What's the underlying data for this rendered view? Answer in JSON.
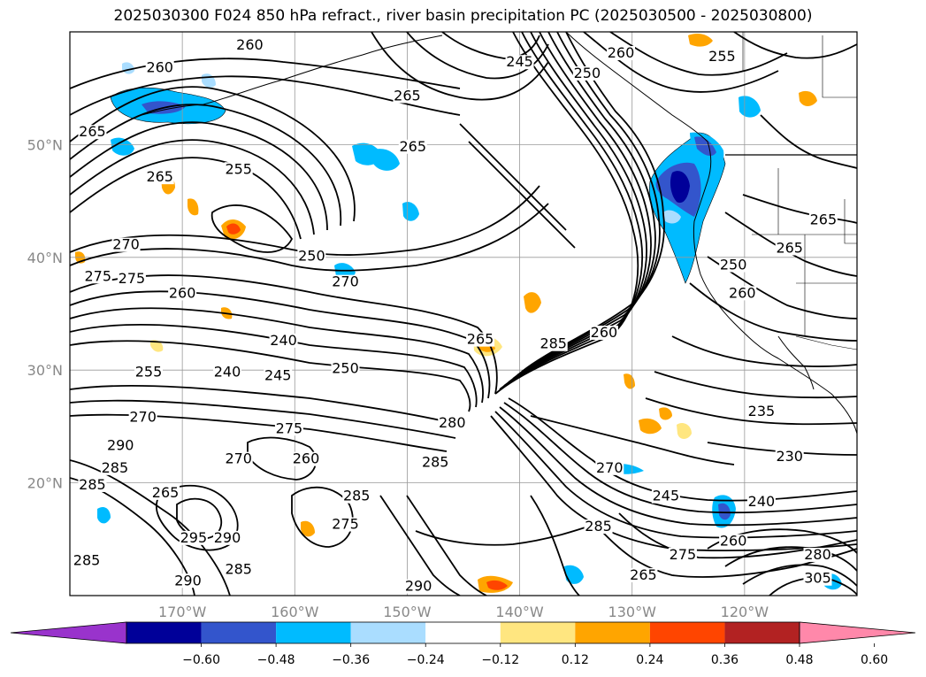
{
  "title": "2025030300 F024 850 hPa refract., river basin precipitation PC (2025030500 - 2025030800)",
  "map": {
    "lon_range": [
      -180,
      -110
    ],
    "lat_range": [
      10,
      60
    ],
    "lat_ticks": [
      {
        "value": 20,
        "label": "20°N"
      },
      {
        "value": 30,
        "label": "30°N"
      },
      {
        "value": 40,
        "label": "40°N"
      },
      {
        "value": 50,
        "label": "50°N"
      }
    ],
    "lon_ticks": [
      {
        "value": -170,
        "label": "170°W"
      },
      {
        "value": -160,
        "label": "160°W"
      },
      {
        "value": -150,
        "label": "150°W"
      },
      {
        "value": -140,
        "label": "140°W"
      },
      {
        "value": -130,
        "label": "130°W"
      },
      {
        "value": -120,
        "label": "120°W"
      }
    ],
    "contour_labels": [
      {
        "text": "260",
        "lon": -172,
        "lat": 56.5
      },
      {
        "text": "260",
        "lon": -164,
        "lat": 58.5
      },
      {
        "text": "245",
        "lon": -140,
        "lat": 57
      },
      {
        "text": "250",
        "lon": -134,
        "lat": 56
      },
      {
        "text": "260",
        "lon": -131,
        "lat": 57.8
      },
      {
        "text": "255",
        "lon": -122,
        "lat": 57.5
      },
      {
        "text": "265",
        "lon": -150,
        "lat": 54
      },
      {
        "text": "265",
        "lon": -149.5,
        "lat": 49.5
      },
      {
        "text": "265",
        "lon": -178,
        "lat": 50.8
      },
      {
        "text": "265",
        "lon": -172,
        "lat": 46.8
      },
      {
        "text": "255",
        "lon": -165,
        "lat": 47.5
      },
      {
        "text": "270",
        "lon": -175,
        "lat": 40.8
      },
      {
        "text": "275",
        "lon": -177.5,
        "lat": 38
      },
      {
        "text": "275",
        "lon": -174.5,
        "lat": 37.8
      },
      {
        "text": "250",
        "lon": -158.5,
        "lat": 39.8
      },
      {
        "text": "270",
        "lon": -155.5,
        "lat": 37.5
      },
      {
        "text": "260",
        "lon": -170,
        "lat": 36.5
      },
      {
        "text": "240",
        "lon": -161,
        "lat": 32.3
      },
      {
        "text": "240",
        "lon": -166,
        "lat": 29.5
      },
      {
        "text": "245",
        "lon": -161.5,
        "lat": 29.2
      },
      {
        "text": "250",
        "lon": -155.5,
        "lat": 29.8
      },
      {
        "text": "255",
        "lon": -173,
        "lat": 29.5
      },
      {
        "text": "265",
        "lon": -143.5,
        "lat": 32.4
      },
      {
        "text": "285",
        "lon": -137,
        "lat": 32
      },
      {
        "text": "260",
        "lon": -132.5,
        "lat": 33
      },
      {
        "text": "250",
        "lon": -121,
        "lat": 39
      },
      {
        "text": "260",
        "lon": -120.2,
        "lat": 36.5
      },
      {
        "text": "265",
        "lon": -116,
        "lat": 40.5
      },
      {
        "text": "265",
        "lon": -113,
        "lat": 43
      },
      {
        "text": "235",
        "lon": -118.5,
        "lat": 26
      },
      {
        "text": "230",
        "lon": -116,
        "lat": 22
      },
      {
        "text": "240",
        "lon": -118.5,
        "lat": 18
      },
      {
        "text": "245",
        "lon": -127,
        "lat": 18.5
      },
      {
        "text": "270",
        "lon": -173.5,
        "lat": 25.5
      },
      {
        "text": "280",
        "lon": -146,
        "lat": 25
      },
      {
        "text": "285",
        "lon": -147.5,
        "lat": 21.5
      },
      {
        "text": "290",
        "lon": -175.5,
        "lat": 23
      },
      {
        "text": "285",
        "lon": -176,
        "lat": 21
      },
      {
        "text": "285",
        "lon": -178,
        "lat": 19.5
      },
      {
        "text": "265",
        "lon": -171.5,
        "lat": 18.8
      },
      {
        "text": "275",
        "lon": -160.5,
        "lat": 24.5
      },
      {
        "text": "260",
        "lon": -159,
        "lat": 21.8
      },
      {
        "text": "270",
        "lon": -165,
        "lat": 21.8
      },
      {
        "text": "285",
        "lon": -154.5,
        "lat": 18.5
      },
      {
        "text": "275",
        "lon": -155.5,
        "lat": 16
      },
      {
        "text": "295",
        "lon": -169,
        "lat": 14.8
      },
      {
        "text": "290",
        "lon": -166,
        "lat": 14.8
      },
      {
        "text": "285",
        "lon": -178.5,
        "lat": 12.8
      },
      {
        "text": "285",
        "lon": -165,
        "lat": 12
      },
      {
        "text": "290",
        "lon": -169.5,
        "lat": 11
      },
      {
        "text": "290",
        "lon": -149,
        "lat": 10.5
      },
      {
        "text": "285",
        "lon": -133,
        "lat": 15.8
      },
      {
        "text": "275",
        "lon": -125.5,
        "lat": 13.3
      },
      {
        "text": "265",
        "lon": -129,
        "lat": 11.5
      },
      {
        "text": "260",
        "lon": -121,
        "lat": 14.5
      },
      {
        "text": "280",
        "lon": -113.5,
        "lat": 13.3
      },
      {
        "text": "305",
        "lon": -113.5,
        "lat": 11.2
      },
      {
        "text": "270",
        "lon": -132,
        "lat": 21
      }
    ]
  },
  "colorbar": {
    "ticks": [
      "−0.60",
      "−0.48",
      "−0.36",
      "−0.24",
      "−0.12",
      "0.12",
      "0.24",
      "0.36",
      "0.48",
      "0.60"
    ],
    "colors": [
      "#9933cc",
      "#000099",
      "#3355cc",
      "#00bbff",
      "#aaddff",
      "#ffffff",
      "#ffe680",
      "#ffa500",
      "#ff4500",
      "#b22222",
      "#ff88aa"
    ]
  }
}
